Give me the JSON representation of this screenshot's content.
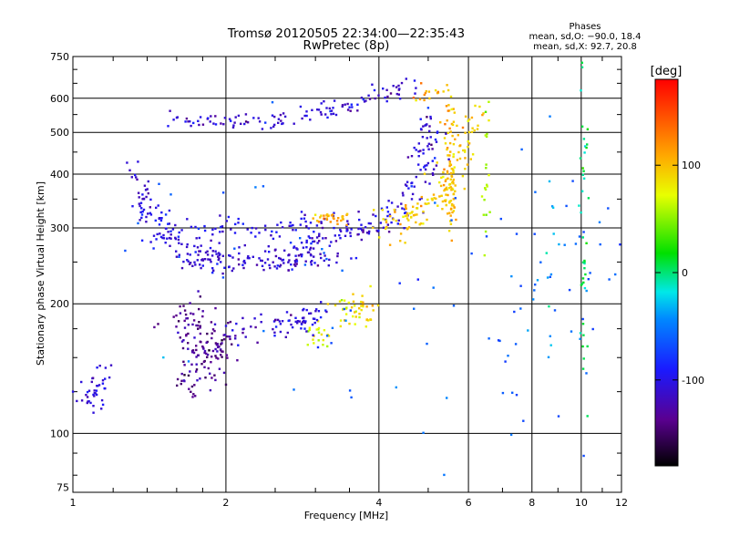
{
  "chart_data": {
    "type": "scatter",
    "title": "Tromsø 20120505 22:34:00—22:35:43",
    "subtitle": "RwPretec (8p)",
    "xlabel": "Frequency [MHz]",
    "ylabel": "Stationary phase Virtual Height [km]",
    "x_scale": "log",
    "y_scale": "log",
    "xlim": [
      1,
      12
    ],
    "ylim": [
      73,
      750
    ],
    "x_ticks": [
      1,
      2,
      4,
      6,
      8,
      10,
      12
    ],
    "y_ticks": [
      75,
      100,
      200,
      300,
      400,
      500,
      600,
      750
    ],
    "grid": true,
    "phases": {
      "title": "Phases",
      "line1": "mean, sd,O: −90.0, 18.4",
      "line2": "mean, sd,X:  92.7, 20.8"
    },
    "colorbar": {
      "label": "[deg]",
      "min": -180,
      "max": 180,
      "ticks": [
        100,
        0,
        -100
      ],
      "colormap": "rainbow"
    },
    "clusters": [
      {
        "name": "o-trace-lower",
        "points": [
          [
            1.45,
            300
          ],
          [
            1.55,
            278
          ],
          [
            1.7,
            268
          ],
          [
            1.9,
            262
          ],
          [
            2.2,
            262
          ],
          [
            2.5,
            266
          ],
          [
            2.8,
            272
          ],
          [
            3.2,
            282
          ],
          [
            3.6,
            292
          ],
          [
            4.0,
            305
          ],
          [
            4.4,
            330
          ],
          [
            4.7,
            370
          ],
          [
            4.9,
            420
          ],
          [
            5.0,
            480
          ],
          [
            5.05,
            560
          ]
        ],
        "spread_x": 0.04,
        "spread_y": 0.03,
        "n": 260,
        "phase": -105
      },
      {
        "name": "o-trace-upper",
        "points": [
          [
            1.35,
            330
          ],
          [
            1.5,
            315
          ],
          [
            1.8,
            300
          ],
          [
            2.2,
            295
          ],
          [
            2.6,
            300
          ],
          [
            3.0,
            310
          ],
          [
            3.4,
            320
          ]
        ],
        "spread_x": 0.05,
        "spread_y": 0.025,
        "n": 90,
        "phase": -100
      },
      {
        "name": "o-lower-band",
        "points": [
          [
            1.7,
            250
          ],
          [
            2.0,
            242
          ],
          [
            2.4,
            242
          ],
          [
            2.8,
            248
          ],
          [
            3.2,
            256
          ]
        ],
        "spread_x": 0.05,
        "spread_y": 0.02,
        "n": 80,
        "phase": -112
      },
      {
        "name": "o-left-rise",
        "points": [
          [
            1.3,
            420
          ],
          [
            1.35,
            370
          ],
          [
            1.4,
            330
          ]
        ],
        "spread_x": 0.02,
        "spread_y": 0.03,
        "n": 25,
        "phase": -110
      },
      {
        "name": "x-trace",
        "points": [
          [
            3.9,
            300
          ],
          [
            4.3,
            305
          ],
          [
            4.7,
            320
          ],
          [
            5.1,
            340
          ],
          [
            5.4,
            370
          ],
          [
            5.6,
            400
          ],
          [
            5.8,
            440
          ],
          [
            6.0,
            490
          ],
          [
            6.1,
            540
          ]
        ],
        "spread_x": 0.03,
        "spread_y": 0.04,
        "n": 140,
        "phase": 95
      },
      {
        "name": "x-vertical-5.5",
        "points": [
          [
            5.5,
            300
          ],
          [
            5.5,
            400
          ],
          [
            5.5,
            500
          ],
          [
            5.5,
            600
          ]
        ],
        "spread_x": 0.015,
        "spread_y": 0.06,
        "n": 70,
        "phase": 100
      },
      {
        "name": "x-patch-3.2",
        "points": [
          [
            3.1,
            318
          ],
          [
            3.3,
            315
          ]
        ],
        "spread_x": 0.05,
        "spread_y": 0.015,
        "n": 30,
        "phase": 108
      },
      {
        "name": "x-blob-350",
        "points": [
          [
            3.5,
            185
          ],
          [
            3.6,
            200
          ],
          [
            3.8,
            185
          ]
        ],
        "spread_x": 0.04,
        "spread_y": 0.04,
        "n": 45,
        "phase": 85
      },
      {
        "name": "x-blob-lower",
        "points": [
          [
            3.0,
            180
          ],
          [
            3.1,
            165
          ]
        ],
        "spread_x": 0.03,
        "spread_y": 0.04,
        "n": 20,
        "phase": 75
      },
      {
        "name": "f2-high",
        "points": [
          [
            1.55,
            540
          ],
          [
            1.8,
            530
          ],
          [
            2.1,
            530
          ],
          [
            2.5,
            535
          ],
          [
            2.9,
            545
          ],
          [
            3.3,
            565
          ],
          [
            3.7,
            590
          ],
          [
            4.1,
            615
          ],
          [
            4.6,
            640
          ]
        ],
        "spread_x": 0.035,
        "spread_y": 0.02,
        "n": 120,
        "phase": -110
      },
      {
        "name": "f2-high-x",
        "points": [
          [
            4.8,
            630
          ],
          [
            5.0,
            610
          ],
          [
            5.3,
            620
          ]
        ],
        "spread_x": 0.03,
        "spread_y": 0.025,
        "n": 14,
        "phase": 110
      },
      {
        "name": "e-trace-dark",
        "points": [
          [
            1.6,
            185
          ],
          [
            1.75,
            175
          ],
          [
            1.9,
            165
          ],
          [
            2.0,
            155
          ],
          [
            1.7,
            150
          ],
          [
            1.8,
            140
          ],
          [
            1.65,
            128
          ]
        ],
        "spread_x": 0.05,
        "spread_y": 0.05,
        "n": 150,
        "phase": -135
      },
      {
        "name": "e-trace-blue",
        "points": [
          [
            2.1,
            180
          ],
          [
            2.3,
            175
          ],
          [
            2.6,
            180
          ],
          [
            2.8,
            182
          ],
          [
            3.0,
            183
          ]
        ],
        "spread_x": 0.05,
        "spread_y": 0.04,
        "n": 70,
        "phase": -108
      },
      {
        "name": "low-left",
        "points": [
          [
            1.05,
            120
          ],
          [
            1.1,
            125
          ],
          [
            1.15,
            135
          ]
        ],
        "spread_x": 0.03,
        "spread_y": 0.05,
        "n": 40,
        "phase": -105
      },
      {
        "name": "scatter-noise",
        "points": [
          [
            1.3,
            200
          ],
          [
            2.0,
            350
          ],
          [
            3.0,
            220
          ],
          [
            4.5,
            150
          ],
          [
            7.0,
            300
          ],
          [
            9.0,
            250
          ],
          [
            10.5,
            200
          ],
          [
            11.0,
            350
          ],
          [
            8.5,
            140
          ],
          [
            6.5,
            100
          ]
        ],
        "spread_x": 0.25,
        "spread_y": 0.25,
        "n": 110,
        "phase": -60
      },
      {
        "name": "column-10",
        "points": [
          [
            10.1,
            150
          ],
          [
            10.1,
            300
          ],
          [
            10.1,
            500
          ]
        ],
        "spread_x": 0.01,
        "spread_y": 0.25,
        "n": 40,
        "phase": 0
      },
      {
        "name": "column-8.7",
        "points": [
          [
            8.7,
            200
          ],
          [
            8.7,
            400
          ]
        ],
        "spread_x": 0.01,
        "spread_y": 0.3,
        "n": 12,
        "phase": -30
      },
      {
        "name": "column-6.5",
        "points": [
          [
            6.5,
            300
          ],
          [
            6.5,
            500
          ]
        ],
        "spread_x": 0.01,
        "spread_y": 0.2,
        "n": 20,
        "phase": 60
      }
    ]
  }
}
